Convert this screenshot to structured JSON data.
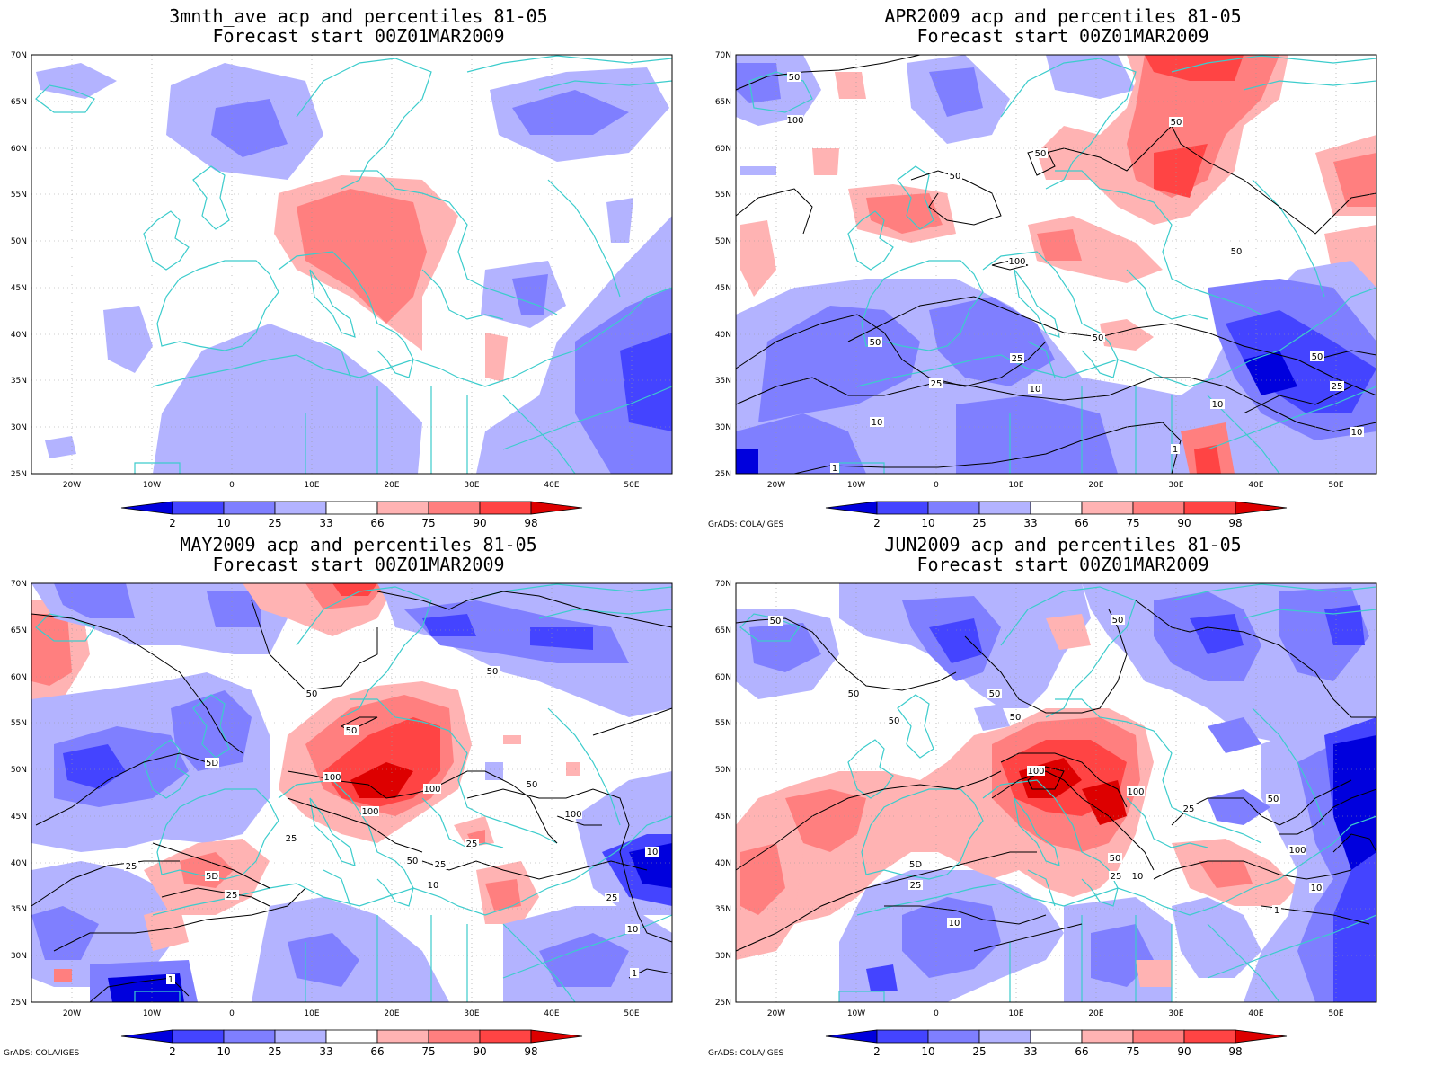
{
  "panels": [
    {
      "title": "3mnth_ave acp and percentiles 81-05",
      "subtitle": "Forecast start 00Z01MAR2009",
      "grads": ""
    },
    {
      "title": "APR2009 acp and percentiles 81-05",
      "subtitle": "Forecast start 00Z01MAR2009",
      "grads": "GrADS: COLA/IGES"
    },
    {
      "title": "MAY2009 acp and percentiles 81-05",
      "subtitle": "Forecast start 00Z01MAR2009",
      "grads": "GrADS: COLA/IGES"
    },
    {
      "title": "JUN2009 acp and percentiles 81-05",
      "subtitle": "Forecast start 00Z01MAR2009",
      "grads": "GrADS: COLA/IGES"
    }
  ],
  "map": {
    "lat_labels": [
      "70N",
      "65N",
      "60N",
      "55N",
      "50N",
      "45N",
      "40N",
      "35N",
      "30N",
      "25N"
    ],
    "lat_values": [
      70,
      65,
      60,
      55,
      50,
      45,
      40,
      35,
      30,
      25
    ],
    "lon_labels": [
      "20W",
      "10W",
      "0",
      "10E",
      "20E",
      "30E",
      "40E",
      "50E"
    ],
    "lon_values": [
      -20,
      -10,
      0,
      10,
      20,
      30,
      40,
      50
    ],
    "lon_range": [
      -25,
      55
    ],
    "lat_range": [
      25,
      70
    ],
    "coast_color": "#3ccccc",
    "grid_color": "#999999"
  },
  "colorbar": {
    "labels": [
      "2",
      "10",
      "25",
      "33",
      "66",
      "75",
      "90",
      "98"
    ],
    "colors": [
      "#0000dd",
      "#4444ff",
      "#7f7fff",
      "#b3b3ff",
      "#ffffff",
      "#ffb3b3",
      "#ff7f7f",
      "#ff4444",
      "#dd0000"
    ]
  },
  "contour_labels": {
    "apr": [
      "50",
      "100",
      "50",
      "50",
      "50",
      "100",
      "50",
      "50",
      "50",
      "25",
      "25",
      "10",
      "10",
      "10",
      "50",
      "25",
      "1",
      "1",
      "10"
    ],
    "may": [
      "50",
      "50",
      "5D",
      "50",
      "100",
      "100",
      "100",
      "50",
      "25",
      "25",
      "25",
      "50",
      "100",
      "10",
      "10",
      "25",
      "5D",
      "25",
      "25",
      "10",
      "1",
      "1"
    ],
    "jun": [
      "50",
      "50",
      "50",
      "50",
      "50",
      "50",
      "100",
      "100",
      "50",
      "5D",
      "25",
      "10",
      "25",
      "50",
      "100",
      "25",
      "10",
      "1",
      "10"
    ]
  }
}
